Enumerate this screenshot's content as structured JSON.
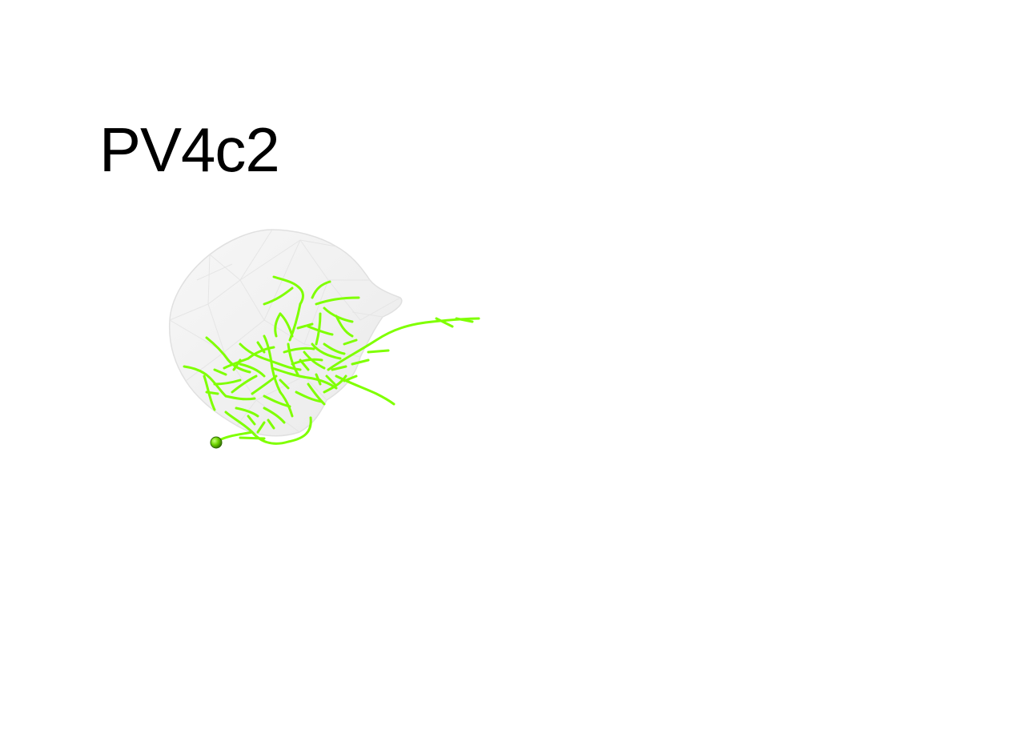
{
  "title": "PV4c2",
  "colors": {
    "background": "#ffffff",
    "title": "#000000",
    "neuron": "#7fff00",
    "soma": "#5ec400",
    "neuropil_fill": "#efefef",
    "neuropil_edge": "#e2e2e2"
  },
  "icons": {
    "soma": "soma-sphere-icon"
  }
}
